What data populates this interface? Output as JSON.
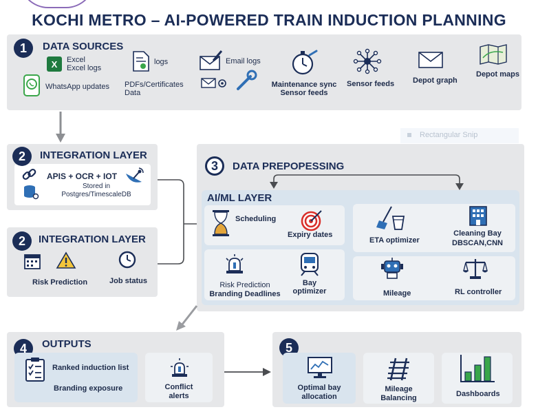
{
  "title": "KOCHI METRO – AI-POWERED TRAIN INDUCTION PLANNING",
  "data_sources": {
    "number": "1",
    "title": "DATA SOURCES",
    "excel_1": "Excel",
    "excel_2": "Excel logs",
    "whatsapp": "WhatsApp updates",
    "logs": "logs",
    "pdfs_1": "PDFs/Certificates",
    "pdfs_2": "Data",
    "email": "Email logs",
    "maint_1": "Maintenance sync",
    "maint_2": "Sensor feeds",
    "sensor": "Sensor feeds",
    "depot_graph": "Depot graph",
    "depot_maps": "Depot maps"
  },
  "integration_1": {
    "number": "2",
    "title": "INTEGRATION LAYER",
    "apis": "APIS + OCR + IOT",
    "stored_1": "Stored in",
    "stored_2": "Postgres/TimescaleDB"
  },
  "integration_2": {
    "number": "2",
    "title": "INTEGRATION LAYER",
    "risk": "Risk Prediction",
    "job": "Job status"
  },
  "processing": {
    "number": "3",
    "title": "DATA PREPOPESSING",
    "ai_title": "AI/ML LAYER",
    "scheduling": "Scheduling",
    "expiry": "Expiry dates",
    "eta": "ETA optimizer",
    "cleaning_1": "Cleaning Bay",
    "cleaning_2": "DBSCAN,CNN",
    "risk_1": "Risk Prediction",
    "risk_2": "Branding Deadlines",
    "bay_1": "Bay",
    "bay_2": "optimizer",
    "mileage": "Mileage",
    "rl": "RL controller"
  },
  "outputs": {
    "number": "4",
    "title": "OUTPUTS",
    "ranked": "Ranked induction list",
    "branding": "Branding exposure",
    "conflict_1": "Conflict",
    "conflict_2": "alerts"
  },
  "results": {
    "number": "5",
    "optimal_1": "Optimal bay",
    "optimal_2": "allocation",
    "mileage_1": "Mileage",
    "mileage_2": "Balancing",
    "dashboards": "Dashboards"
  },
  "snip_label": "Rectangular Snip",
  "colors": {
    "navy": "#1b2d57",
    "panel": "#e6e7e9",
    "subpanel": "#d9e4ee",
    "excel_green": "#1f7a3f",
    "alert_red": "#d9302b",
    "chart_green": "#3aa64a"
  }
}
